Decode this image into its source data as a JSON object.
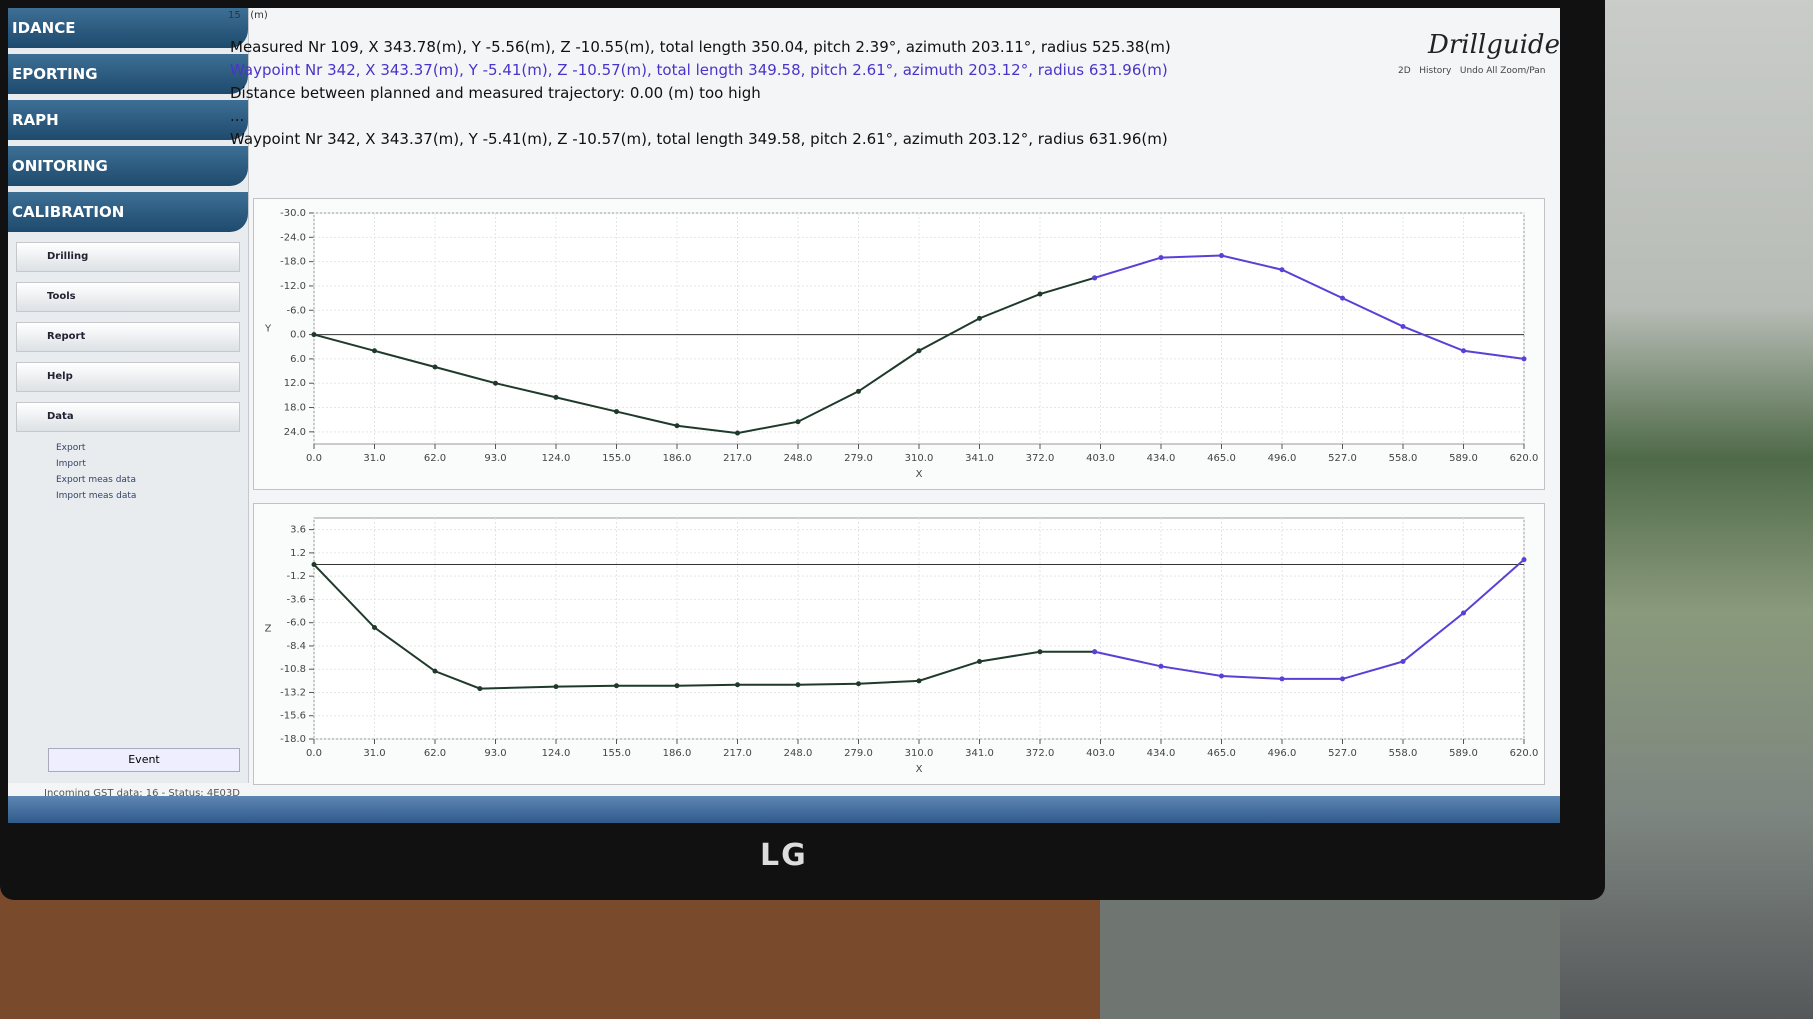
{
  "top_input": {
    "value": "15",
    "unit": "(m)"
  },
  "sidebar": {
    "nav": [
      "IDANCE",
      "EPORTING",
      "RAPH",
      "ONITORING",
      "CALIBRATION"
    ],
    "menu": [
      "Drilling",
      "Tools",
      "Report",
      "Help",
      "Data"
    ],
    "data_items": [
      "Export",
      "Import",
      "Export meas data",
      "Import meas data"
    ],
    "button": "Event"
  },
  "status": "Incoming GST data: 16 - Status: 4E03D",
  "toolbar": {
    "history": "History",
    "undo": "Undo All Zoom/Pan",
    "view": "2D"
  },
  "logo": "Drillguide",
  "info": {
    "measured": "Measured Nr 109, X 343.78(m), Y -5.56(m), Z -10.55(m), total length 350.04, pitch 2.39°, azimuth 203.11°, radius 525.38(m)",
    "waypoint": "Waypoint Nr 342, X 343.37(m), Y -5.41(m), Z -10.57(m), total length 349.58, pitch 2.61°, azimuth 203.12°, radius 631.96(m)",
    "distance": "Distance between planned and measured trajectory: 0.00 (m) too high",
    "ellipsis": "...",
    "waypoint_repeat": "Waypoint Nr 342, X 343.37(m), Y -5.41(m), Z -10.57(m), total length 349.58, pitch 2.61°, azimuth 203.12°, radius 631.96(m)"
  },
  "monitor_brand": "LG",
  "chart_data": [
    {
      "type": "line",
      "x_label": "X",
      "y_label": "Y",
      "xlim": [
        0,
        620
      ],
      "ylim": [
        -30,
        27
      ],
      "y_inverted": true,
      "grid": true,
      "hline": 0,
      "xticks": [
        {
          "value": 0,
          "label": "0.0"
        },
        {
          "value": 31,
          "label": "31.0"
        },
        {
          "value": 62,
          "label": "62.0"
        },
        {
          "value": 93,
          "label": "93.0"
        },
        {
          "value": 124,
          "label": "124.0"
        },
        {
          "value": 155,
          "label": "155.0"
        },
        {
          "value": 186,
          "label": "186.0"
        },
        {
          "value": 217,
          "label": "217.0"
        },
        {
          "value": 248,
          "label": "248.0"
        },
        {
          "value": 279,
          "label": "279.0"
        },
        {
          "value": 310,
          "label": "310.0"
        },
        {
          "value": 341,
          "label": "341.0"
        },
        {
          "value": 372,
          "label": "372.0"
        },
        {
          "value": 403,
          "label": "403.0"
        },
        {
          "value": 434,
          "label": "434.0"
        },
        {
          "value": 465,
          "label": "465.0"
        },
        {
          "value": 496,
          "label": "496.0"
        },
        {
          "value": 527,
          "label": "527.0"
        },
        {
          "value": 558,
          "label": "558.0"
        },
        {
          "value": 589,
          "label": "589.0"
        },
        {
          "value": 620,
          "label": "620.0"
        }
      ],
      "yticks": [
        {
          "value": -30,
          "label": "-30.0"
        },
        {
          "value": -24,
          "label": "-24.0"
        },
        {
          "value": -18,
          "label": "-18.0"
        },
        {
          "value": -12,
          "label": "-12.0"
        },
        {
          "value": -6,
          "label": "-6.0"
        },
        {
          "value": 0,
          "label": "0.0"
        },
        {
          "value": 6,
          "label": "6.0"
        },
        {
          "value": 12,
          "label": "12.0"
        },
        {
          "value": 18,
          "label": "18.0"
        },
        {
          "value": 24,
          "label": "24.0"
        }
      ],
      "series": [
        {
          "color": "#1f3a2a",
          "x": [
            0,
            31,
            62,
            93,
            124,
            155,
            186,
            217,
            248,
            279,
            310,
            341,
            372,
            400
          ],
          "values": [
            0,
            4,
            8,
            12,
            15.5,
            19,
            22.5,
            24.3,
            21.5,
            14,
            4,
            -4,
            -10,
            -14
          ]
        },
        {
          "color": "#5b3fd6",
          "x": [
            400,
            434,
            465,
            496,
            527,
            558,
            589,
            620
          ],
          "values": [
            -14,
            -19,
            -19.5,
            -16,
            -9,
            -2,
            4,
            6
          ]
        }
      ]
    },
    {
      "type": "line",
      "x_label": "X",
      "y_label": "Z",
      "xlim": [
        0,
        620
      ],
      "ylim": [
        -18,
        4.8
      ],
      "y_inverted": false,
      "grid": true,
      "hline": 0,
      "xticks": [
        {
          "value": 0,
          "label": "0.0"
        },
        {
          "value": 31,
          "label": "31.0"
        },
        {
          "value": 62,
          "label": "62.0"
        },
        {
          "value": 93,
          "label": "93.0"
        },
        {
          "value": 124,
          "label": "124.0"
        },
        {
          "value": 155,
          "label": "155.0"
        },
        {
          "value": 186,
          "label": "186.0"
        },
        {
          "value": 217,
          "label": "217.0"
        },
        {
          "value": 248,
          "label": "248.0"
        },
        {
          "value": 279,
          "label": "279.0"
        },
        {
          "value": 310,
          "label": "310.0"
        },
        {
          "value": 341,
          "label": "341.0"
        },
        {
          "value": 372,
          "label": "372.0"
        },
        {
          "value": 403,
          "label": "403.0"
        },
        {
          "value": 434,
          "label": "434.0"
        },
        {
          "value": 465,
          "label": "465.0"
        },
        {
          "value": 496,
          "label": "496.0"
        },
        {
          "value": 527,
          "label": "527.0"
        },
        {
          "value": 558,
          "label": "558.0"
        },
        {
          "value": 589,
          "label": "589.0"
        },
        {
          "value": 620,
          "label": "620.0"
        }
      ],
      "yticks": [
        3.6,
        1.2,
        -1.2,
        -3.6,
        {
          "value": -6,
          "label": "-6.0"
        },
        -8.4,
        -10.8,
        -13.2,
        -15.6,
        {
          "value": -18,
          "label": "-18.0"
        }
      ],
      "series": [
        {
          "color": "#1f3a2a",
          "x": [
            0,
            31,
            62,
            85,
            124,
            155,
            186,
            217,
            248,
            279,
            310,
            341,
            372,
            400
          ],
          "values": [
            0,
            -6.5,
            -11,
            -12.8,
            -12.6,
            -12.5,
            -12.5,
            -12.4,
            -12.4,
            -12.3,
            -12,
            -10,
            -9,
            -9
          ]
        },
        {
          "color": "#5b3fd6",
          "x": [
            400,
            434,
            465,
            496,
            527,
            558,
            589,
            620
          ],
          "values": [
            -9,
            -10.5,
            -11.5,
            -11.8,
            -11.8,
            -10,
            -5,
            0.5
          ]
        }
      ]
    }
  ]
}
